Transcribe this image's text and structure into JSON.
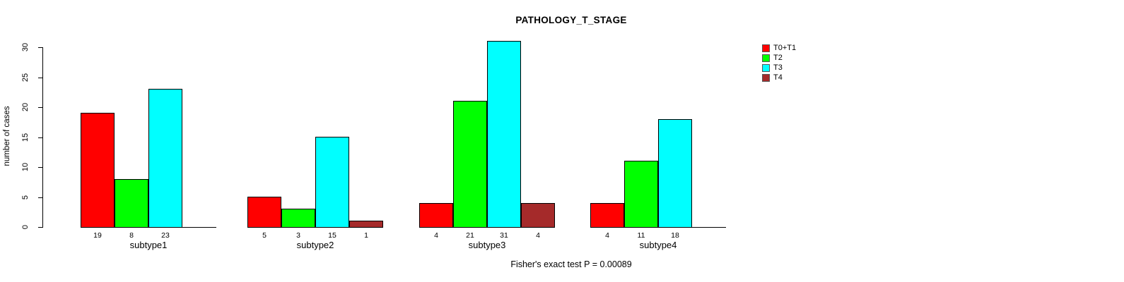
{
  "chart_data": {
    "type": "bar",
    "title": "PATHOLOGY_T_STAGE",
    "ylabel": "number of cases",
    "xlabel": "",
    "ylim": [
      0,
      30
    ],
    "yticks": [
      0,
      5,
      10,
      15,
      20,
      25,
      30
    ],
    "grid": false,
    "legend_position": "top-right",
    "categories": [
      "subtype1",
      "subtype2",
      "subtype3",
      "subtype4"
    ],
    "series": [
      {
        "name": "T0+T1",
        "color": "#FF0000",
        "values": [
          19,
          5,
          4,
          4
        ]
      },
      {
        "name": "T2",
        "color": "#00FF00",
        "values": [
          8,
          3,
          21,
          11
        ]
      },
      {
        "name": "T3",
        "color": "#00FFFF",
        "values": [
          23,
          15,
          31,
          18
        ]
      },
      {
        "name": "T4",
        "color": "#A52A2A",
        "values": [
          0,
          1,
          4,
          0
        ]
      }
    ],
    "bar_value_labels": [
      [
        "19",
        "8",
        "23",
        ""
      ],
      [
        "5",
        "3",
        "15",
        "1"
      ],
      [
        "4",
        "21",
        "31",
        "4"
      ],
      [
        "4",
        "11",
        "18",
        ""
      ]
    ],
    "annotation": "Fisher's exact test P = 0.00089"
  }
}
